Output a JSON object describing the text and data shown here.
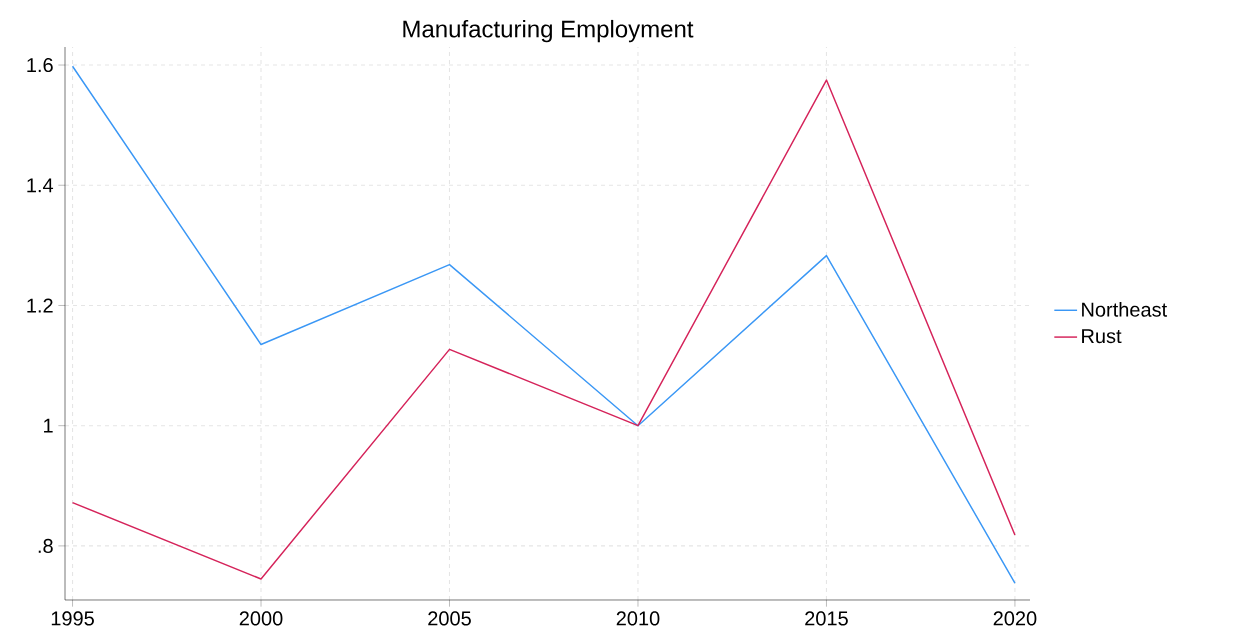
{
  "chart_data": {
    "type": "line",
    "title": "Manufacturing Employment",
    "x": [
      1995,
      2000,
      2005,
      2010,
      2015,
      2020
    ],
    "series": [
      {
        "name": "Northeast",
        "color": "#3a97f5",
        "values": [
          1.598,
          1.135,
          1.268,
          1.0,
          1.283,
          0.738
        ]
      },
      {
        "name": "Rust",
        "color": "#d5235a",
        "values": [
          0.872,
          0.745,
          1.127,
          1.0,
          1.575,
          0.818
        ]
      }
    ],
    "xlim": [
      1994.8,
      2020.4
    ],
    "ylim": [
      0.71,
      1.63
    ],
    "xticks": [
      1995,
      2000,
      2005,
      2010,
      2015,
      2020
    ],
    "yticks": [
      {
        "value": 0.8,
        "label": ".8"
      },
      1,
      1.2,
      1.4,
      1.6
    ],
    "grid": true,
    "legend": "right",
    "marker": "none",
    "line_style": "solid"
  }
}
